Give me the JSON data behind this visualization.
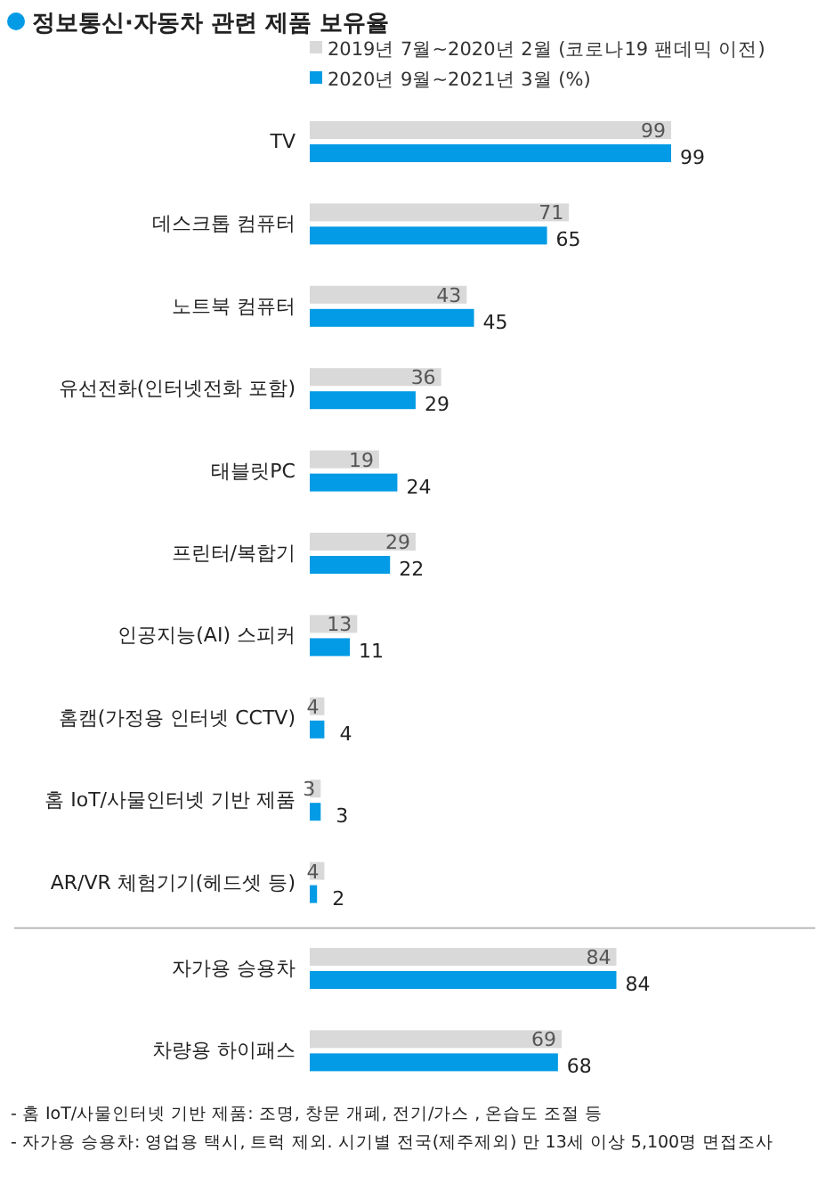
{
  "chart_data": {
    "type": "bar",
    "orientation": "horizontal",
    "title": "정보통신·자동차 관련 제품 보유율",
    "categories": [
      "TV",
      "데스크톱 컴퓨터",
      "노트북 컴퓨터",
      "유선전화(인터넷전화 포함)",
      "태블릿PC",
      "프린터/복합기",
      "인공지능(AI) 스피커",
      "홈캠(가정용 인터넷 CCTV)",
      "홈 IoT/사물인터넷 기반 제품",
      "AR/VR 체험기기(헤드셋 등)",
      "자가용 승용차",
      "차량용 하이패스"
    ],
    "series": [
      {
        "name": "2019년 7월~2020년 2월 (코로나19 팬데믹 이전)",
        "color": "#d9d9d9",
        "values": [
          99,
          71,
          43,
          36,
          19,
          29,
          13,
          4,
          3,
          4,
          84,
          69
        ]
      },
      {
        "name": "2020년 9월~2021년 3월 (%)",
        "color": "#039be5",
        "values": [
          99,
          65,
          45,
          29,
          24,
          22,
          11,
          4,
          3,
          2,
          84,
          68
        ]
      }
    ],
    "data_labels": true,
    "legend": "top",
    "annotations": [
      "- 홈 IoT/사물인터넷 기반 제품: 조명, 창문 개폐, 전기/가스 , 온습도 조절 등",
      "- 자가용 승용차: 영업용 택시, 트럭 제외. 시기별 전국(제주제외) 만 13세 이상 5,100명 면접조사"
    ]
  }
}
